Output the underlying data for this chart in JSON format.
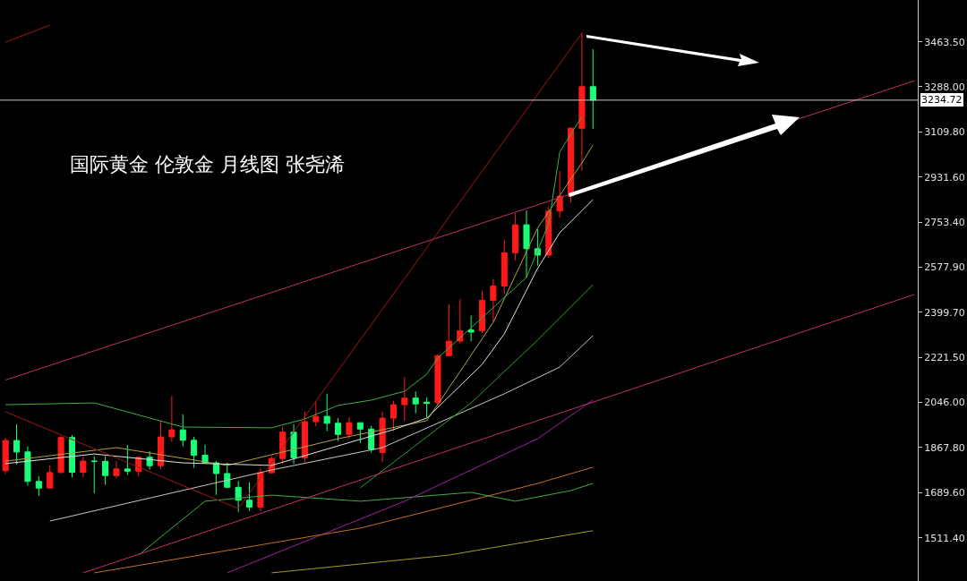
{
  "chart_data": {
    "type": "candlestick",
    "title": "国际黄金 伦敦金 月线图 张尧浠",
    "categories": [
      null,
      null,
      null,
      null,
      null,
      null,
      null,
      null,
      null,
      null,
      null,
      null,
      null,
      null,
      null,
      null,
      null,
      null,
      null,
      null,
      null,
      null,
      null,
      null,
      null,
      null,
      null,
      null,
      null,
      null,
      null,
      null,
      null,
      null,
      null,
      null,
      null,
      null,
      null,
      null,
      null,
      null,
      null,
      null,
      null,
      null,
      null,
      null,
      null,
      null,
      null,
      null,
      null,
      null,
      null,
      null,
      null,
      null,
      null,
      null,
      null,
      null,
      null,
      null,
      null,
      null,
      null,
      null,
      null,
      null,
      null,
      null,
      null,
      null,
      null,
      null,
      null,
      null,
      null,
      null,
      null,
      null,
      null
    ],
    "ohlc": [
      [
        1776,
        1906,
        1764,
        1895
      ],
      [
        1895,
        1959,
        1802,
        1850
      ],
      [
        1850,
        1872,
        1717,
        1734
      ],
      [
        1734,
        1755,
        1677,
        1708
      ],
      [
        1708,
        1798,
        1706,
        1769
      ],
      [
        1769,
        1913,
        1766,
        1907
      ],
      [
        1907,
        1917,
        1750,
        1770
      ],
      [
        1770,
        1833,
        1751,
        1814
      ],
      [
        1814,
        1832,
        1688,
        1813
      ],
      [
        1813,
        1834,
        1721,
        1757
      ],
      [
        1757,
        1814,
        1746,
        1783
      ],
      [
        1783,
        1877,
        1759,
        1774
      ],
      [
        1774,
        1831,
        1753,
        1829
      ],
      [
        1829,
        1853,
        1781,
        1796
      ],
      [
        1796,
        1974,
        1781,
        1909
      ],
      [
        1909,
        2070,
        1890,
        1937
      ],
      [
        1937,
        1998,
        1872,
        1896
      ],
      [
        1896,
        1910,
        1787,
        1837
      ],
      [
        1837,
        1879,
        1805,
        1807
      ],
      [
        1807,
        1814,
        1681,
        1765
      ],
      [
        1765,
        1808,
        1709,
        1711
      ],
      [
        1711,
        1735,
        1614,
        1660
      ],
      [
        1660,
        1730,
        1617,
        1633
      ],
      [
        1633,
        1786,
        1616,
        1768
      ],
      [
        1768,
        1833,
        1765,
        1824
      ],
      [
        1824,
        1949,
        1804,
        1928
      ],
      [
        1928,
        1959,
        1804,
        1827
      ],
      [
        1827,
        2009,
        1810,
        1969
      ],
      [
        1969,
        2049,
        1950,
        1990
      ],
      [
        1990,
        2079,
        1932,
        1963
      ],
      [
        1963,
        1983,
        1893,
        1919
      ],
      [
        1919,
        1987,
        1903,
        1965
      ],
      [
        1965,
        1966,
        1885,
        1940
      ],
      [
        1940,
        1953,
        1848,
        1860
      ],
      [
        1848,
        2009,
        1810,
        1983
      ],
      [
        1983,
        2052,
        1932,
        2036
      ],
      [
        2036,
        2146,
        1973,
        2062
      ],
      [
        2062,
        2088,
        2002,
        2039
      ],
      [
        2046,
        2065,
        1984,
        2041
      ],
      [
        2044,
        2234,
        2030,
        2229
      ],
      [
        2229,
        2431,
        2228,
        2286
      ],
      [
        2286,
        2450,
        2277,
        2327
      ],
      [
        2330,
        2387,
        2286,
        2322
      ],
      [
        2327,
        2483,
        2318,
        2447
      ],
      [
        2447,
        2531,
        2364,
        2503
      ],
      [
        2503,
        2685,
        2472,
        2634
      ],
      [
        2634,
        2790,
        2603,
        2744
      ],
      [
        2744,
        2801,
        2537,
        2650
      ],
      [
        2650,
        2726,
        2583,
        2625
      ],
      [
        2625,
        2817,
        2614,
        2798
      ],
      [
        2798,
        2956,
        2772,
        2857
      ],
      [
        2857,
        3128,
        2833,
        3124
      ],
      [
        3124,
        3500,
        2957,
        3288
      ],
      [
        3288,
        3435,
        3121,
        3234.72
      ],
      null,
      null,
      null,
      null,
      null,
      null,
      null,
      null,
      null,
      null,
      null,
      null,
      null,
      null,
      null,
      null,
      null,
      null,
      null,
      null,
      null,
      null,
      null,
      null,
      null,
      null,
      null,
      null,
      null
    ],
    "colors": [
      "#ff1a1a",
      "#1aff7a",
      "#1aff7a",
      "#1aff7a",
      "#ff1a1a",
      "#ff1a1a",
      "#1aff7a",
      "#ff1a1a",
      "#1aff7a",
      "#1aff7a",
      "#ff1a1a",
      "#1aff7a",
      "#ff1a1a",
      "#1aff7a",
      "#ff1a1a",
      "#ff1a1a",
      "#1aff7a",
      "#1aff7a",
      "#1aff7a",
      "#1aff7a",
      "#1aff7a",
      "#1aff7a",
      "#1aff7a",
      "#ff1a1a",
      "#ff1a1a",
      "#ff1a1a",
      "#1aff7a",
      "#ff1a1a",
      "#ff1a1a",
      "#1aff7a",
      "#1aff7a",
      "#ff1a1a",
      "#1aff7a",
      "#1aff7a",
      "#ff1a1a",
      "#ff1a1a",
      "#ff1a1a",
      "#1aff7a",
      "#1aff7a",
      "#ff1a1a",
      "#ff1a1a",
      "#ff1a1a",
      "#1aff7a",
      "#ff1a1a",
      "#ff1a1a",
      "#ff1a1a",
      "#ff1a1a",
      "#1aff7a",
      "#1aff7a",
      "#ff1a1a",
      "#ff1a1a",
      "#ff1a1a",
      "#ff1a1a",
      "#1aff7a",
      null,
      null,
      null,
      null,
      null,
      null,
      null,
      null,
      null,
      null,
      null,
      null,
      null,
      null,
      null,
      null,
      null,
      null,
      null,
      null,
      null,
      null,
      null,
      null,
      null,
      null,
      null,
      null,
      null
    ],
    "series": [
      {
        "type": "line",
        "color": "#b0a040",
        "values": [
          1814,
          null,
          null,
          null,
          null,
          null,
          null,
          null,
          null,
          null,
          1867,
          null,
          null,
          null,
          null,
          null,
          null,
          null,
          null,
          null,
          1797,
          null,
          null,
          null,
          null,
          null,
          null,
          null,
          null,
          null,
          1902,
          null,
          null,
          null,
          null,
          null,
          null,
          null,
          1973,
          null,
          null,
          null,
          null,
          null,
          2360,
          null,
          null,
          null,
          2731,
          null,
          null,
          null,
          2988,
          3058,
          null,
          null,
          null,
          null,
          null,
          null,
          null,
          null,
          null,
          null,
          null,
          null,
          null,
          null,
          null,
          null,
          null,
          null,
          null,
          null,
          null,
          null,
          null,
          null,
          null,
          null,
          null,
          null,
          null
        ]
      },
      {
        "type": "line",
        "color": "#3cb043",
        "values": [
          2036,
          null,
          null,
          null,
          null,
          null,
          null,
          null,
          2043,
          null,
          null,
          null,
          null,
          null,
          null,
          null,
          1948,
          null,
          null,
          null,
          null,
          null,
          null,
          null,
          1945,
          null,
          null,
          1980,
          null,
          null,
          2033,
          null,
          null,
          2054,
          null,
          null,
          2089,
          null,
          2156,
          2220,
          null,
          null,
          null,
          null,
          null,
          null,
          null,
          2537,
          null,
          2748,
          3030,
          null,
          3171,
          null,
          null,
          null,
          null,
          null,
          null,
          null,
          null,
          null,
          null,
          null,
          null,
          null,
          null,
          null,
          null,
          null,
          null,
          null,
          null,
          null,
          null,
          null,
          null,
          null,
          null,
          null,
          null,
          null,
          null
        ]
      },
      {
        "type": "line",
        "color": "#e0e0e0",
        "values": [
          1804,
          null,
          null,
          null,
          null,
          null,
          null,
          null,
          1842,
          null,
          null,
          null,
          null,
          null,
          null,
          null,
          1807,
          null,
          null,
          null,
          null,
          null,
          null,
          null,
          1797,
          null,
          null,
          null,
          null,
          null,
          null,
          null,
          null,
          null,
          null,
          1938,
          null,
          null,
          1983,
          null,
          null,
          null,
          null,
          2195,
          null,
          2315,
          null,
          null,
          2572,
          null,
          2713,
          null,
          null,
          2843,
          null,
          null,
          null,
          null,
          null,
          null,
          null,
          null,
          null,
          null,
          null,
          null,
          null,
          null,
          null,
          null,
          null,
          null,
          null,
          null,
          null,
          null,
          null,
          null,
          null,
          null,
          null,
          null,
          null
        ]
      },
      {
        "type": "line",
        "color": "#c8c8c8",
        "values": [
          null,
          null,
          null,
          null,
          1578,
          null,
          null,
          null,
          null,
          null,
          null,
          null,
          null,
          null,
          null,
          null,
          null,
          null,
          null,
          null,
          null,
          null,
          null,
          null,
          1779,
          null,
          null,
          null,
          null,
          null,
          null,
          null,
          null,
          null,
          1867,
          null,
          null,
          null,
          null,
          null,
          null,
          null,
          null,
          null,
          null,
          2079,
          null,
          null,
          null,
          null,
          2184,
          null,
          null,
          2308,
          null,
          null,
          null,
          null,
          null,
          null,
          null,
          null,
          null,
          null,
          null,
          null,
          null,
          null,
          null,
          null,
          null,
          null,
          null,
          null,
          null,
          null,
          null,
          null,
          null,
          null,
          null,
          null,
          null
        ]
      },
      {
        "type": "line",
        "color": "#30a030",
        "values": [
          null,
          null,
          null,
          null,
          null,
          null,
          null,
          null,
          null,
          null,
          null,
          null,
          null,
          null,
          null,
          null,
          null,
          null,
          null,
          null,
          null,
          null,
          null,
          null,
          null,
          null,
          null,
          null,
          null,
          null,
          null,
          null,
          1709,
          null,
          null,
          null,
          null,
          null,
          null,
          null,
          null,
          null,
          2043,
          null,
          null,
          null,
          null,
          null,
          2290,
          null,
          null,
          null,
          null,
          2508,
          null,
          null,
          null,
          null,
          null,
          null,
          null,
          null,
          null,
          null,
          null,
          null,
          null,
          null,
          null,
          null,
          null,
          null,
          null,
          null,
          null,
          null,
          null,
          null,
          null,
          null,
          null,
          null,
          null
        ]
      },
      {
        "type": "line",
        "color": "#3cb043",
        "values": [
          null,
          null,
          null,
          null,
          null,
          null,
          null,
          null,
          null,
          null,
          null,
          null,
          1444,
          null,
          null,
          null,
          null,
          null,
          1656,
          null,
          null,
          null,
          null,
          null,
          1680,
          null,
          null,
          null,
          null,
          null,
          null,
          null,
          1656,
          null,
          null,
          null,
          null,
          null,
          null,
          null,
          null,
          null,
          1691,
          null,
          null,
          null,
          1656,
          null,
          null,
          null,
          null,
          1698,
          null,
          1726,
          null,
          null,
          null,
          null,
          null,
          null,
          null,
          null,
          null,
          null,
          null,
          null,
          null,
          null,
          null,
          null,
          null,
          null,
          null,
          null,
          null,
          null,
          null,
          null,
          null,
          null,
          null,
          null,
          null
        ]
      },
      {
        "type": "line",
        "color": "#a020a0",
        "values": [
          null,
          null,
          null,
          null,
          null,
          null,
          null,
          null,
          null,
          null,
          null,
          null,
          null,
          null,
          null,
          null,
          null,
          null,
          null,
          null,
          1374,
          null,
          null,
          null,
          null,
          null,
          null,
          null,
          null,
          null,
          null,
          null,
          null,
          null,
          null,
          null,
          1656,
          null,
          null,
          null,
          null,
          null,
          null,
          null,
          null,
          null,
          null,
          null,
          1902,
          null,
          null,
          null,
          null,
          2054,
          null,
          null,
          null,
          null,
          null,
          null,
          null,
          null,
          null,
          null,
          null,
          null,
          null,
          null,
          null,
          null,
          null,
          null,
          null,
          null,
          null,
          null,
          null,
          null,
          null,
          null,
          null,
          null,
          null
        ]
      },
      {
        "type": "line",
        "color": "#c87020",
        "values": [
          null,
          null,
          null,
          null,
          null,
          null,
          null,
          null,
          1374,
          null,
          null,
          null,
          null,
          null,
          null,
          null,
          null,
          null,
          null,
          null,
          null,
          null,
          null,
          null,
          null,
          null,
          null,
          null,
          null,
          null,
          null,
          null,
          1550,
          null,
          null,
          null,
          null,
          null,
          null,
          null,
          null,
          null,
          null,
          null,
          null,
          null,
          null,
          null,
          1726,
          null,
          null,
          null,
          null,
          1790,
          null,
          null,
          null,
          null,
          null,
          null,
          null,
          null,
          null,
          null,
          null,
          null,
          null,
          null,
          null,
          null,
          null,
          null,
          null,
          null,
          null,
          null,
          null,
          null,
          null,
          null,
          null,
          null,
          null
        ]
      },
      {
        "type": "line",
        "color": "#a0a020",
        "values": [
          null,
          null,
          null,
          null,
          null,
          null,
          null,
          null,
          null,
          null,
          null,
          null,
          null,
          null,
          null,
          null,
          null,
          null,
          null,
          null,
          null,
          null,
          null,
          null,
          1374,
          null,
          null,
          null,
          null,
          null,
          null,
          null,
          null,
          null,
          null,
          null,
          null,
          null,
          null,
          null,
          1444,
          null,
          null,
          null,
          null,
          null,
          null,
          null,
          null,
          null,
          null,
          null,
          null,
          1540,
          null,
          null,
          null,
          null,
          null,
          null,
          null,
          null,
          null,
          null,
          null,
          null,
          null,
          null,
          null,
          null,
          null,
          null,
          null,
          null,
          null,
          null,
          null,
          null,
          null,
          null,
          null,
          null,
          null
        ]
      },
      {
        "type": "line",
        "color": "#c0306a",
        "values": [
          2133,
          null,
          null,
          null,
          null,
          null,
          null,
          null,
          null,
          null,
          null,
          null,
          null,
          null,
          null,
          null,
          null,
          null,
          null,
          null,
          null,
          null,
          null,
          null,
          null,
          null,
          null,
          null,
          null,
          null,
          null,
          null,
          null,
          null,
          null,
          null,
          null,
          null,
          null,
          null,
          null,
          null,
          null,
          null,
          null,
          null,
          null,
          null,
          null,
          null,
          null,
          null,
          null,
          null,
          null,
          null,
          null,
          null,
          null,
          null,
          null,
          null,
          null,
          null,
          null,
          null,
          null,
          null,
          null,
          null,
          null,
          null,
          null,
          null,
          null,
          null,
          null,
          null,
          null,
          null,
          null,
          null,
          3311
        ]
      },
      {
        "type": "line",
        "color": "#c0306a",
        "values": [
          null,
          null,
          null,
          null,
          null,
          null,
          null,
          1374,
          null,
          null,
          null,
          null,
          null,
          null,
          null,
          null,
          null,
          null,
          null,
          null,
          null,
          null,
          null,
          null,
          null,
          null,
          null,
          null,
          null,
          null,
          null,
          null,
          null,
          null,
          null,
          null,
          null,
          null,
          null,
          null,
          null,
          null,
          null,
          null,
          null,
          null,
          null,
          null,
          null,
          null,
          null,
          null,
          null,
          null,
          null,
          null,
          null,
          null,
          null,
          null,
          null,
          null,
          null,
          null,
          null,
          null,
          null,
          null,
          null,
          null,
          null,
          null,
          null,
          null,
          null,
          null,
          null,
          null,
          null,
          null,
          null,
          null,
          2470
        ]
      },
      {
        "type": "line",
        "color": "#a01818",
        "values": [
          2008,
          null,
          null,
          null,
          null,
          null,
          null,
          null,
          null,
          null,
          null,
          null,
          null,
          null,
          null,
          null,
          null,
          null,
          null,
          null,
          null,
          1627,
          null,
          null,
          null,
          null,
          null,
          null,
          null,
          null,
          null,
          null,
          null,
          null,
          null,
          null,
          null,
          null,
          null,
          null,
          null,
          null,
          null,
          null,
          null,
          null,
          null,
          null,
          null,
          null,
          null,
          null,
          3499,
          null,
          null,
          null,
          null,
          null,
          null,
          null,
          null,
          null,
          null,
          null,
          null,
          null,
          null,
          null,
          null,
          null,
          null,
          null,
          null,
          null,
          null,
          null,
          null,
          null,
          null,
          null,
          null,
          null,
          null
        ]
      },
      {
        "type": "line",
        "color": "#a01818",
        "values": [
          3463,
          null,
          null,
          null,
          3530,
          null,
          null,
          null,
          null,
          null,
          null,
          null,
          null,
          null,
          null,
          null,
          null,
          null,
          null,
          null,
          null,
          null,
          null,
          null,
          null,
          null,
          null,
          null,
          null,
          null,
          null,
          null,
          null,
          null,
          null,
          null,
          null,
          null,
          null,
          null,
          null,
          null,
          null,
          null,
          null,
          null,
          null,
          null,
          null,
          null,
          null,
          null,
          null,
          null,
          null,
          null,
          null,
          null,
          null,
          null,
          null,
          null,
          null,
          null,
          null,
          null,
          null,
          null,
          null,
          null,
          null,
          null,
          null,
          null,
          null,
          null,
          null,
          null,
          null,
          null,
          null,
          null,
          null
        ]
      }
    ],
    "ylim": [
      1342,
      3629
    ],
    "yticks": [
      {
        "value": 3463.5,
        "label": "3463.50"
      },
      {
        "value": 3288,
        "label": "3288.00"
      },
      {
        "value": 3109.8,
        "label": "3109.80"
      },
      {
        "value": 2931.6,
        "label": "2931.60"
      },
      {
        "value": 2753.4,
        "label": "2753.40"
      },
      {
        "value": 2577.9,
        "label": "2577.90"
      },
      {
        "value": 2399.7,
        "label": "2399.70"
      },
      {
        "value": 2221.5,
        "label": "2221.50"
      },
      {
        "value": 2046,
        "label": "2046.00"
      },
      {
        "value": 1867.8,
        "label": "1867.80"
      },
      {
        "value": 1689.6,
        "label": "1689.60"
      },
      {
        "value": 1511.4,
        "label": "1511.40"
      }
    ],
    "ref_lines": [
      {
        "axis": "y",
        "value": 3234.72,
        "label": "3234.72",
        "color": "#c8c8c8"
      }
    ],
    "tick_labels": "y",
    "grid": false
  }
}
